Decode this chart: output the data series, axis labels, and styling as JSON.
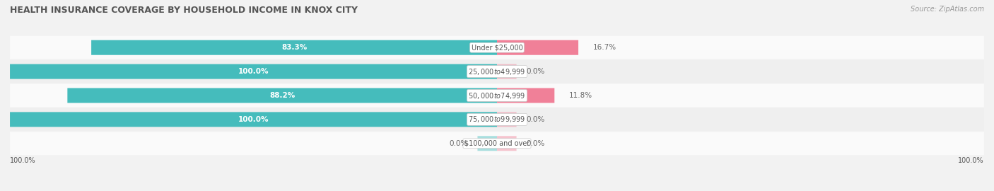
{
  "title": "HEALTH INSURANCE COVERAGE BY HOUSEHOLD INCOME IN KNOX CITY",
  "source": "Source: ZipAtlas.com",
  "categories": [
    "Under $25,000",
    "$25,000 to $49,999",
    "$50,000 to $74,999",
    "$75,000 to $99,999",
    "$100,000 and over"
  ],
  "with_coverage": [
    83.3,
    100.0,
    88.2,
    100.0,
    0.0
  ],
  "without_coverage": [
    16.7,
    0.0,
    11.8,
    0.0,
    0.0
  ],
  "color_with": "#45BCBC",
  "color_without": "#F08098",
  "bg_color": "#f2f2f2",
  "row_colors": [
    "#fafafa",
    "#efefef"
  ],
  "title_color": "#555555",
  "source_color": "#999999",
  "label_color": "#555555",
  "value_color_white": "#ffffff",
  "value_color_dark": "#666666",
  "bar_height": 0.62,
  "xlim_left": -100,
  "xlim_right": 100,
  "axis_label_left": "100.0%",
  "axis_label_right": "100.0%"
}
